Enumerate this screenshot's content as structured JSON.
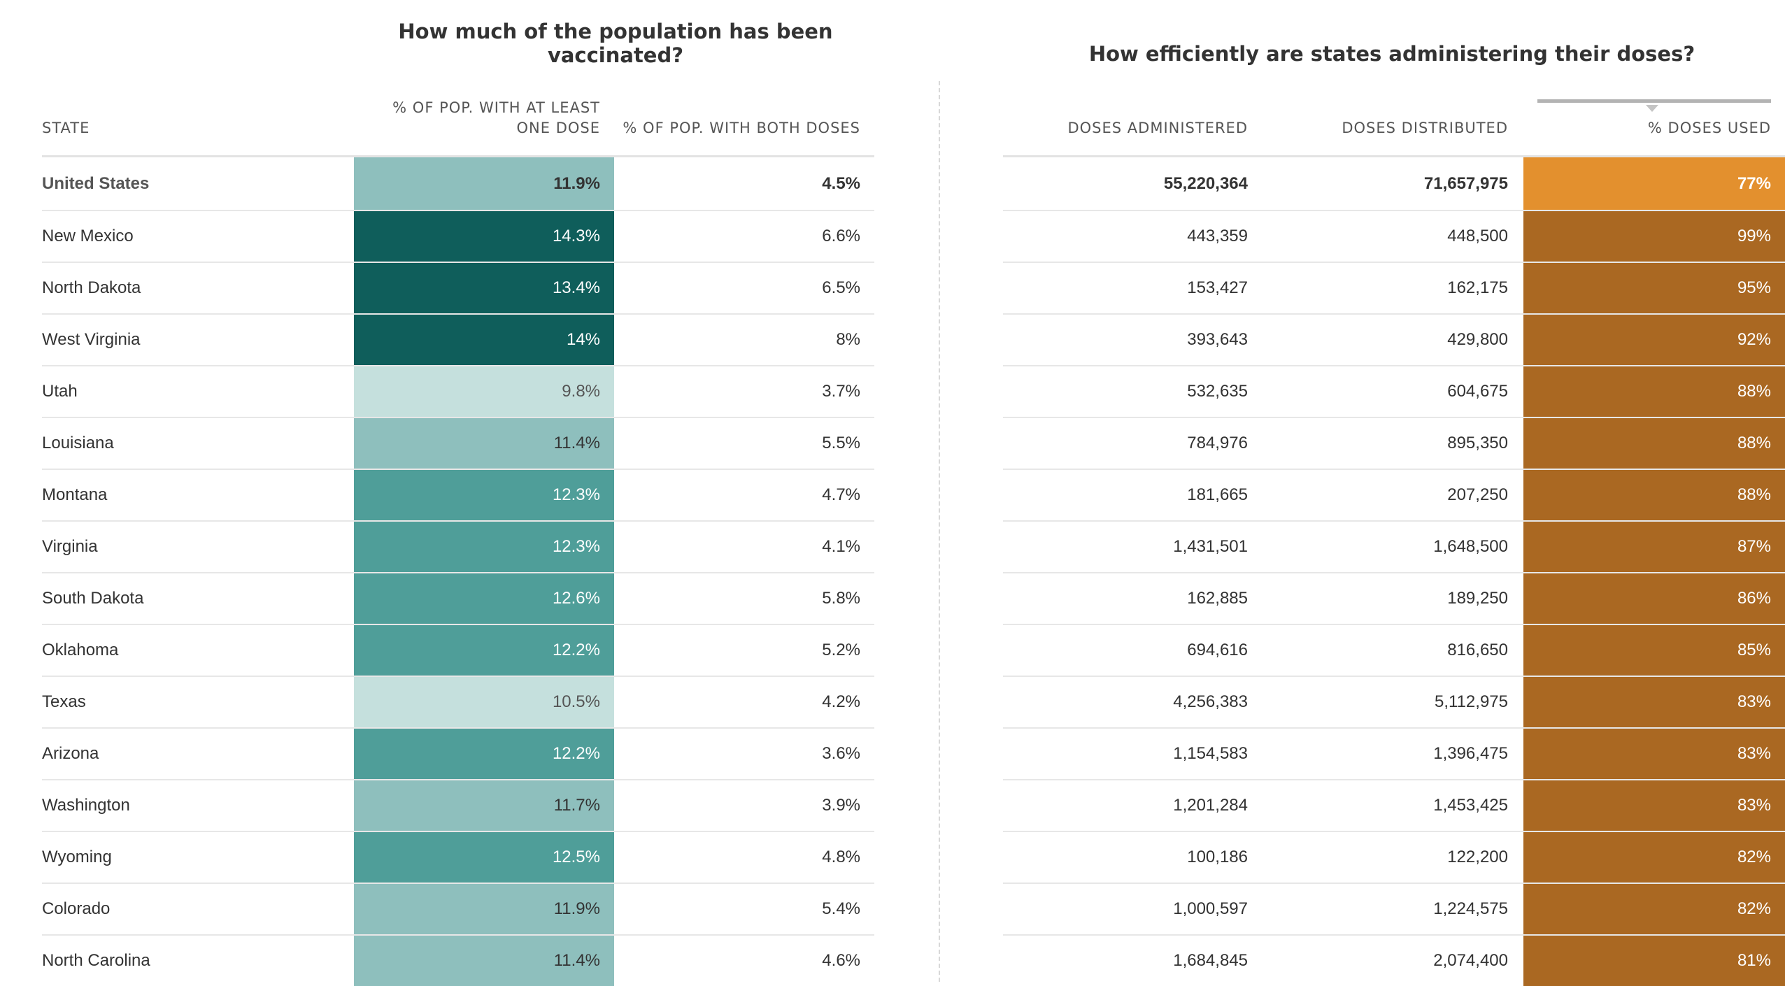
{
  "titles": {
    "left": "How much of the population has been vaccinated?",
    "right": "How efficiently are states administering their doses?"
  },
  "headers": {
    "state": "STATE",
    "one_dose": "% OF POP. WITH AT LEAST ONE DOSE",
    "both_doses": "% OF POP. WITH BOTH DOSES",
    "administered": "DOSES ADMINISTERED",
    "distributed": "DOSES DISTRIBUTED",
    "used": "% DOSES USED"
  },
  "sort": {
    "column": "used",
    "direction": "descending",
    "icon": "sort-down-icon"
  },
  "colors": {
    "one_dose_scale": [
      "#c5e0dd",
      "#8ebfbd",
      "#4f9e99",
      "#0f5e5b"
    ],
    "used_highlight": "#e3902e",
    "used_base": "#aa6822"
  },
  "rows": [
    {
      "state": "United States",
      "one_dose": "11.9%",
      "both_doses": "4.5%",
      "administered": "55,220,364",
      "distributed": "71,657,975",
      "used": "77%",
      "shade": 2
    },
    {
      "state": "New Mexico",
      "one_dose": "14.3%",
      "both_doses": "6.6%",
      "administered": "443,359",
      "distributed": "448,500",
      "used": "99%",
      "shade": 4
    },
    {
      "state": "North Dakota",
      "one_dose": "13.4%",
      "both_doses": "6.5%",
      "administered": "153,427",
      "distributed": "162,175",
      "used": "95%",
      "shade": 4
    },
    {
      "state": "West Virginia",
      "one_dose": "14%",
      "both_doses": "8%",
      "administered": "393,643",
      "distributed": "429,800",
      "used": "92%",
      "shade": 4
    },
    {
      "state": "Utah",
      "one_dose": "9.8%",
      "both_doses": "3.7%",
      "administered": "532,635",
      "distributed": "604,675",
      "used": "88%",
      "shade": 1
    },
    {
      "state": "Louisiana",
      "one_dose": "11.4%",
      "both_doses": "5.5%",
      "administered": "784,976",
      "distributed": "895,350",
      "used": "88%",
      "shade": 2
    },
    {
      "state": "Montana",
      "one_dose": "12.3%",
      "both_doses": "4.7%",
      "administered": "181,665",
      "distributed": "207,250",
      "used": "88%",
      "shade": 3
    },
    {
      "state": "Virginia",
      "one_dose": "12.3%",
      "both_doses": "4.1%",
      "administered": "1,431,501",
      "distributed": "1,648,500",
      "used": "87%",
      "shade": 3
    },
    {
      "state": "South Dakota",
      "one_dose": "12.6%",
      "both_doses": "5.8%",
      "administered": "162,885",
      "distributed": "189,250",
      "used": "86%",
      "shade": 3
    },
    {
      "state": "Oklahoma",
      "one_dose": "12.2%",
      "both_doses": "5.2%",
      "administered": "694,616",
      "distributed": "816,650",
      "used": "85%",
      "shade": 3
    },
    {
      "state": "Texas",
      "one_dose": "10.5%",
      "both_doses": "4.2%",
      "administered": "4,256,383",
      "distributed": "5,112,975",
      "used": "83%",
      "shade": 1
    },
    {
      "state": "Arizona",
      "one_dose": "12.2%",
      "both_doses": "3.6%",
      "administered": "1,154,583",
      "distributed": "1,396,475",
      "used": "83%",
      "shade": 3
    },
    {
      "state": "Washington",
      "one_dose": "11.7%",
      "both_doses": "3.9%",
      "administered": "1,201,284",
      "distributed": "1,453,425",
      "used": "83%",
      "shade": 2
    },
    {
      "state": "Wyoming",
      "one_dose": "12.5%",
      "both_doses": "4.8%",
      "administered": "100,186",
      "distributed": "122,200",
      "used": "82%",
      "shade": 3
    },
    {
      "state": "Colorado",
      "one_dose": "11.9%",
      "both_doses": "5.4%",
      "administered": "1,000,597",
      "distributed": "1,224,575",
      "used": "82%",
      "shade": 2
    },
    {
      "state": "North Carolina",
      "one_dose": "11.4%",
      "both_doses": "4.6%",
      "administered": "1,684,845",
      "distributed": "2,074,400",
      "used": "81%",
      "shade": 2
    }
  ]
}
